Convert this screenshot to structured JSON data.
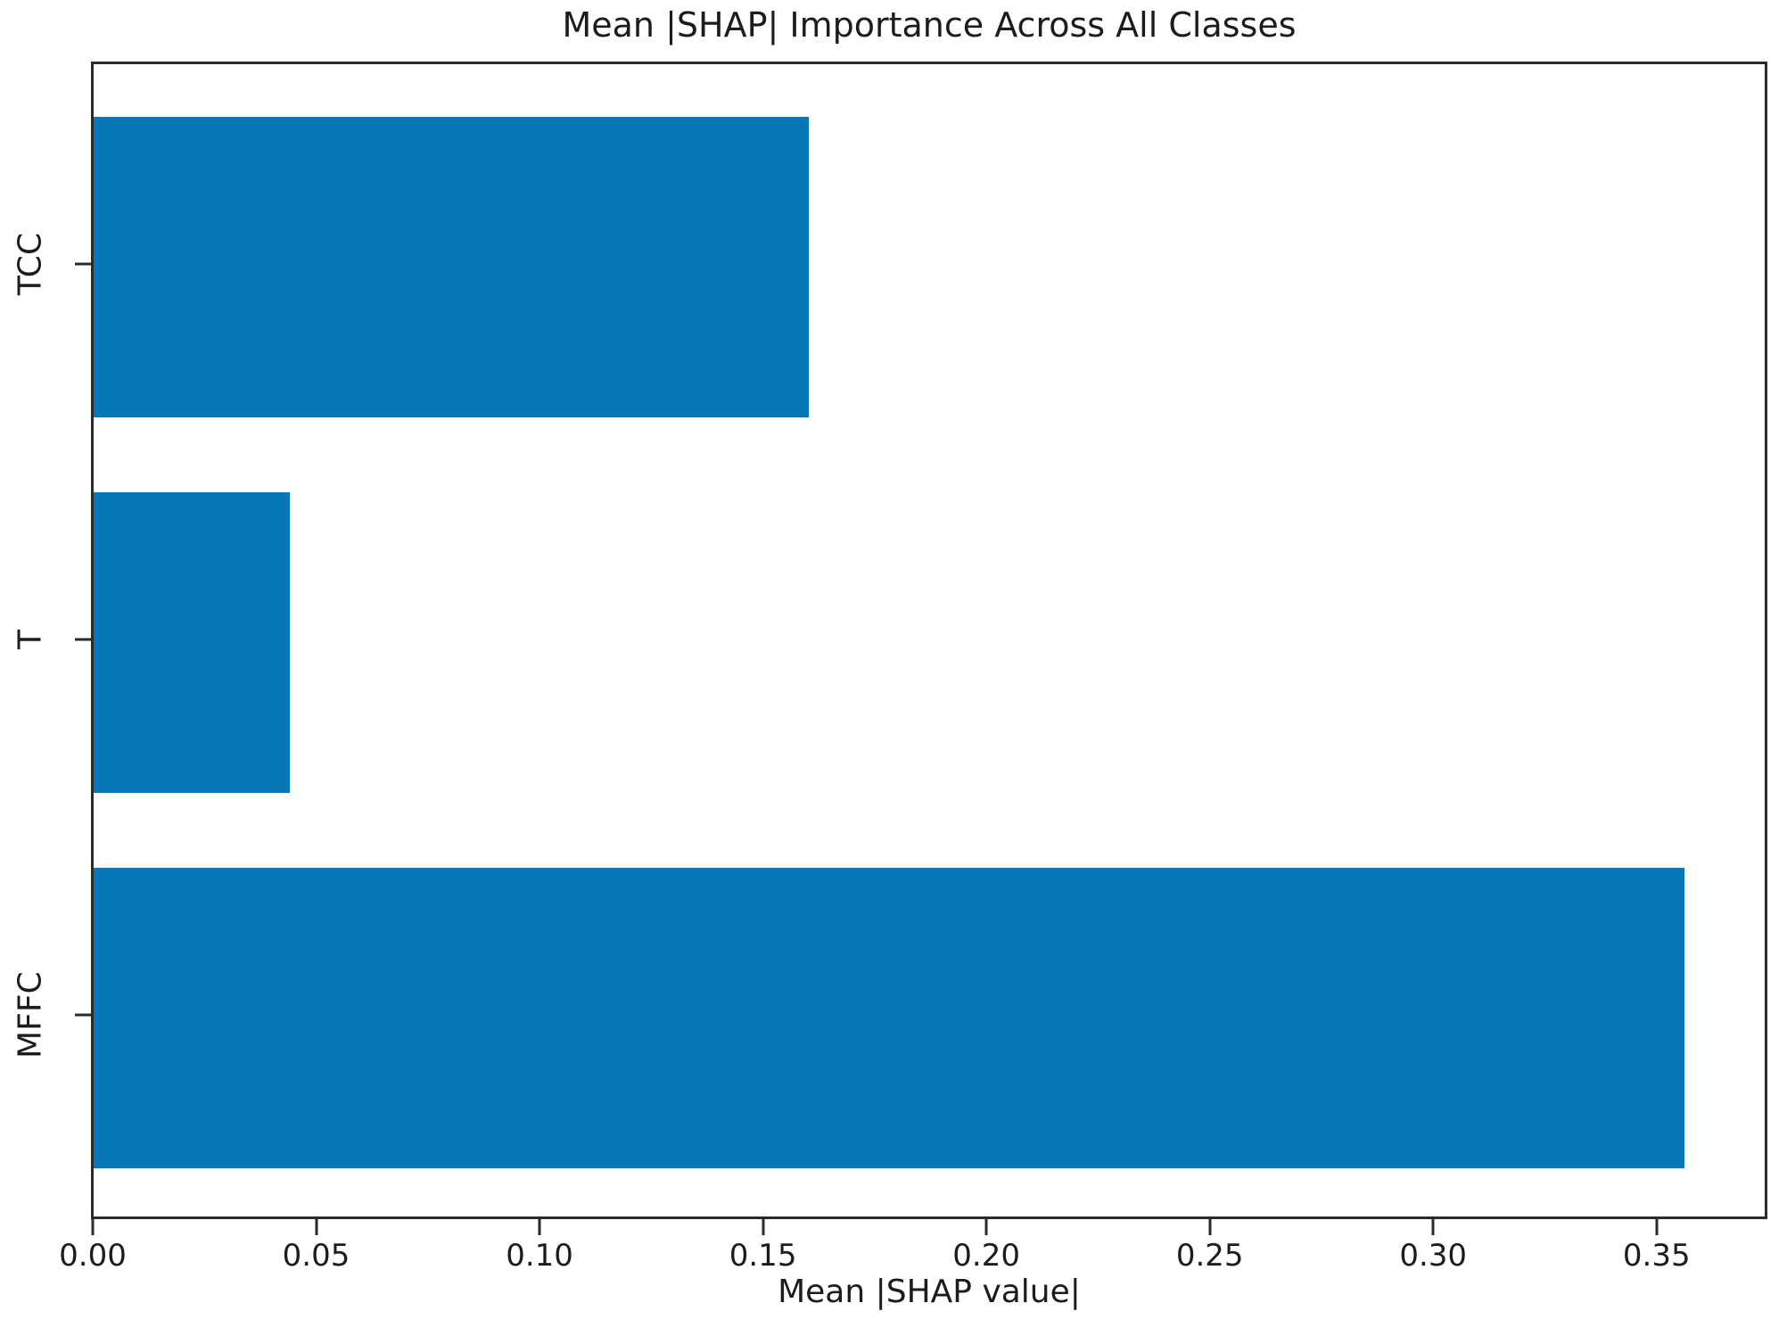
{
  "chart_data": {
    "type": "bar",
    "orientation": "horizontal",
    "title": "Mean |SHAP| Importance Across All Classes",
    "xlabel": "Mean |SHAP value|",
    "categories_top_to_bottom": [
      "TCC",
      "T",
      "MFFC"
    ],
    "values": [
      0.16,
      0.044,
      0.356
    ],
    "xlim": [
      0,
      0.374
    ],
    "xtick_labels": [
      "0.00",
      "0.05",
      "0.10",
      "0.15",
      "0.20",
      "0.25",
      "0.30",
      "0.35"
    ],
    "grid": false,
    "legend": null,
    "bar_color": "#0777b8",
    "axis_color": "#2a2a2a",
    "text_color": "#1c1c1c",
    "background_color": "#ffffff"
  }
}
